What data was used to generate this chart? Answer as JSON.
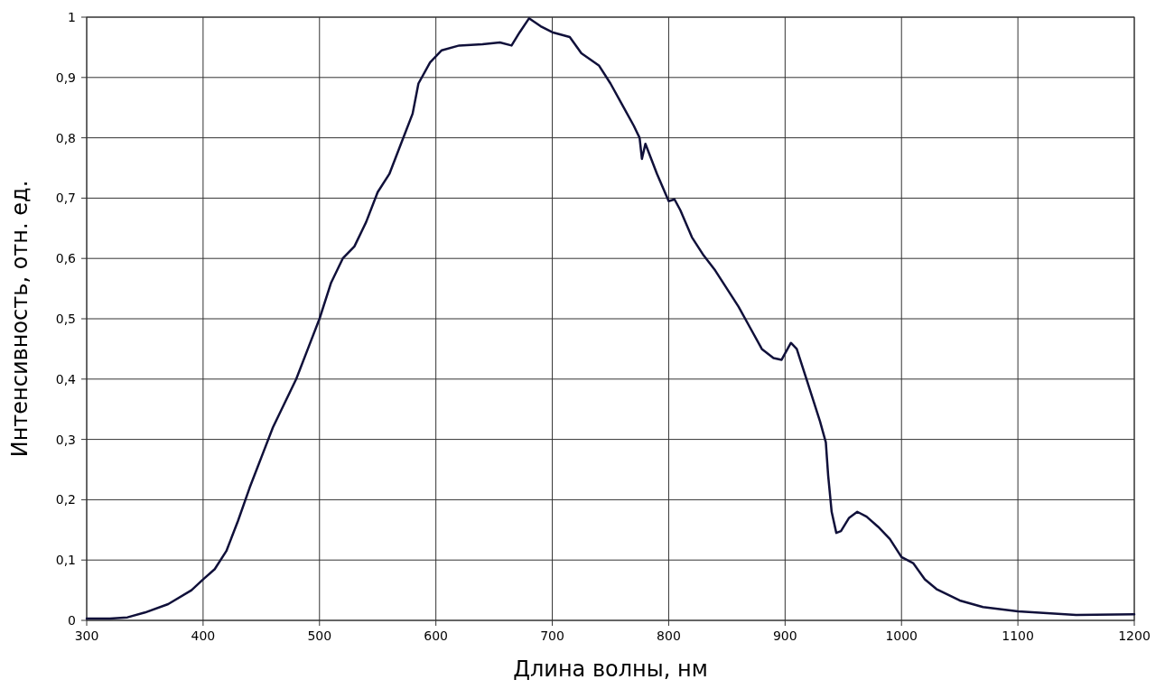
{
  "chart_data": {
    "type": "line",
    "xlabel": "Длина волны, нм",
    "ylabel": "Интенсивность, отн. ед.",
    "xlim": [
      300,
      1200
    ],
    "xticks": [
      300,
      400,
      500,
      600,
      700,
      800,
      900,
      1000,
      1100,
      1200
    ],
    "ylim": [
      0,
      1
    ],
    "yticks": [
      0,
      {
        "value": 0.1,
        "label": "0,1"
      },
      {
        "value": 0.2,
        "label": "0,2"
      },
      {
        "value": 0.3,
        "label": "0,3"
      },
      {
        "value": 0.4,
        "label": "0,4"
      },
      {
        "value": 0.5,
        "label": "0,5"
      },
      {
        "value": 0.6,
        "label": "0,6"
      },
      {
        "value": 0.7,
        "label": "0,7"
      },
      {
        "value": 0.8,
        "label": "0,8"
      },
      {
        "value": 0.9,
        "label": "0,9"
      },
      1
    ],
    "grid": true,
    "line_style": "solid",
    "series": [
      {
        "color": "#10103a",
        "x": [
          300,
          320,
          335,
          350,
          370,
          390,
          400,
          410,
          420,
          430,
          440,
          450,
          460,
          470,
          480,
          490,
          500,
          510,
          520,
          530,
          540,
          550,
          560,
          570,
          580,
          585,
          595,
          605,
          620,
          640,
          655,
          665,
          672,
          680,
          690,
          700,
          715,
          725,
          740,
          750,
          760,
          770,
          775,
          777,
          780,
          790,
          800,
          805,
          810,
          820,
          830,
          840,
          850,
          860,
          870,
          880,
          890,
          897,
          905,
          910,
          920,
          930,
          935,
          937,
          940,
          944,
          948,
          955,
          962,
          970,
          980,
          990,
          1000,
          1010,
          1020,
          1030,
          1050,
          1070,
          1100,
          1150,
          1200
        ],
        "values": [
          0.003,
          0.003,
          0.005,
          0.013,
          0.027,
          0.05,
          0.068,
          0.085,
          0.115,
          0.165,
          0.22,
          0.27,
          0.32,
          0.36,
          0.4,
          0.45,
          0.5,
          0.56,
          0.6,
          0.62,
          0.66,
          0.71,
          0.74,
          0.79,
          0.84,
          0.89,
          0.925,
          0.945,
          0.953,
          0.955,
          0.958,
          0.953,
          0.975,
          0.998,
          0.985,
          0.975,
          0.967,
          0.94,
          0.92,
          0.89,
          0.855,
          0.82,
          0.8,
          0.765,
          0.79,
          0.74,
          0.695,
          0.698,
          0.68,
          0.635,
          0.605,
          0.58,
          0.55,
          0.52,
          0.485,
          0.45,
          0.435,
          0.432,
          0.46,
          0.45,
          0.39,
          0.33,
          0.295,
          0.24,
          0.18,
          0.145,
          0.148,
          0.17,
          0.18,
          0.172,
          0.155,
          0.135,
          0.105,
          0.095,
          0.068,
          0.052,
          0.033,
          0.022,
          0.015,
          0.009,
          0.01
        ]
      }
    ]
  }
}
